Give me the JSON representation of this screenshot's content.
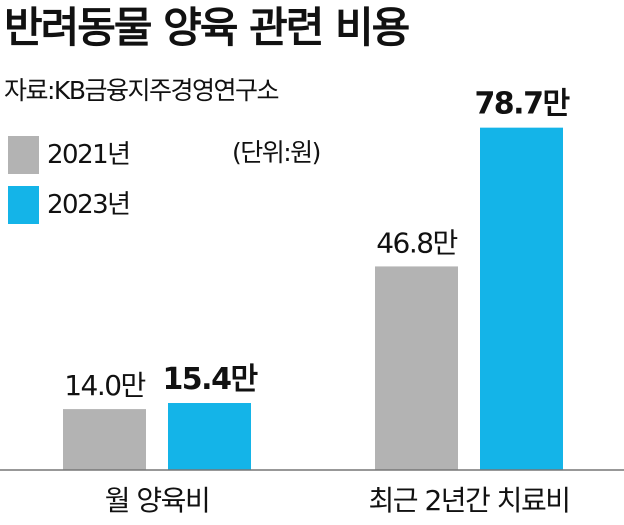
{
  "chart_data": {
    "type": "bar",
    "title": "반려동물 양육 관련 비용",
    "source": "자료:KB금융지주경영연구소",
    "unit_note": "(단위:원)",
    "categories": [
      "월 양육비",
      "최근 2년간 치료비"
    ],
    "series": [
      {
        "name": "2021년",
        "color": "#b3b3b3",
        "values": [
          14.0,
          46.8
        ],
        "labels": [
          "14.0만",
          "46.8만"
        ],
        "bold_labels": false
      },
      {
        "name": "2023년",
        "color": "#14b4e8",
        "values": [
          15.4,
          78.7
        ],
        "labels": [
          "15.4만",
          "78.7만"
        ],
        "bold_labels": true
      }
    ],
    "ylim": [
      0,
      80
    ],
    "grid": false,
    "legend_position": "top-left"
  }
}
